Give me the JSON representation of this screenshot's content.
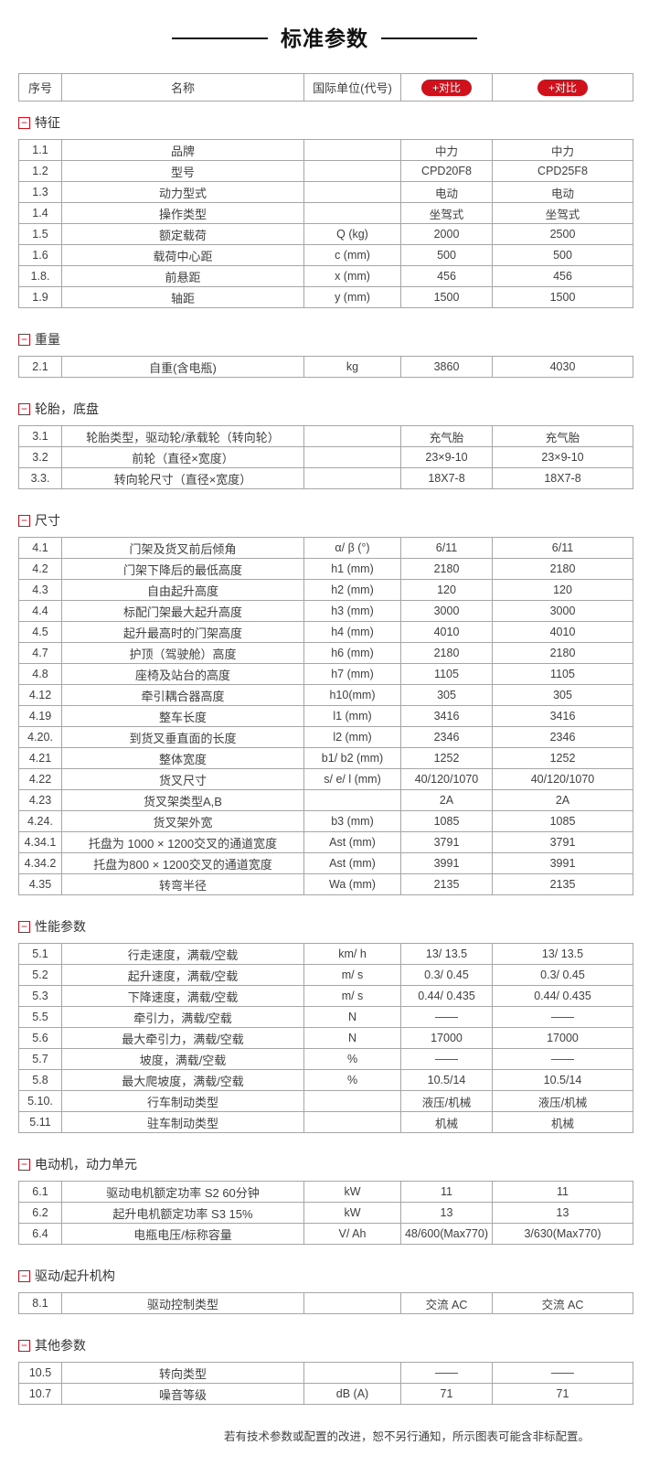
{
  "page_title": "标准参数",
  "colors": {
    "accent_red": "#d0111b",
    "border_gray": "#a6a6a6",
    "text_dark": "#3f3f3f"
  },
  "table_header": {
    "no": "序号",
    "name": "名称",
    "unit": "国际单位(代号)",
    "compare_left": "+对比",
    "compare_right": "+对比"
  },
  "icons": {
    "section_collapse": "−"
  },
  "sections": [
    {
      "title": "特征",
      "rows": [
        [
          "1.1",
          "品牌",
          "",
          "中力",
          "中力"
        ],
        [
          "1.2",
          "型号",
          "",
          "CPD20F8",
          "CPD25F8"
        ],
        [
          "1.3",
          "动力型式",
          "",
          "电动",
          "电动"
        ],
        [
          "1.4",
          "操作类型",
          "",
          "坐驾式",
          "坐驾式"
        ],
        [
          "1.5",
          "额定载荷",
          "Q (kg)",
          "2000",
          "2500"
        ],
        [
          "1.6",
          "载荷中心距",
          "c (mm)",
          "500",
          "500"
        ],
        [
          "1.8.",
          "前悬距",
          "x (mm)",
          "456",
          "456"
        ],
        [
          "1.9",
          "轴距",
          "y (mm)",
          "1500",
          "1500"
        ]
      ]
    },
    {
      "title": "重量",
      "rows": [
        [
          "2.1",
          "自重(含电瓶)",
          "kg",
          "3860",
          "4030"
        ]
      ]
    },
    {
      "title": "轮胎，底盘",
      "rows": [
        [
          "3.1",
          "轮胎类型，驱动轮/承载轮（转向轮）",
          "",
          "充气胎",
          "充气胎"
        ],
        [
          "3.2",
          "前轮（直径×宽度）",
          "",
          "23×9-10",
          "23×9-10"
        ],
        [
          "3.3.",
          "转向轮尺寸（直径×宽度）",
          "",
          "18X7-8",
          "18X7-8"
        ]
      ]
    },
    {
      "title": "尺寸",
      "rows": [
        [
          "4.1",
          "门架及货叉前后倾角",
          "α/ β (°)",
          "6/11",
          "6/11"
        ],
        [
          "4.2",
          "门架下降后的最低高度",
          "h1 (mm)",
          "2180",
          "2180"
        ],
        [
          "4.3",
          "自由起升高度",
          "h2 (mm)",
          "120",
          "120"
        ],
        [
          "4.4",
          "标配门架最大起升高度",
          "h3 (mm)",
          "3000",
          "3000"
        ],
        [
          "4.5",
          "起升最高时的门架高度",
          "h4 (mm)",
          "4010",
          "4010"
        ],
        [
          "4.7",
          "护顶（驾驶舱）高度",
          "h6 (mm)",
          "2180",
          "2180"
        ],
        [
          "4.8",
          "座椅及站台的高度",
          "h7 (mm)",
          "1105",
          "1105"
        ],
        [
          "4.12",
          "牵引耦合器高度",
          "h10(mm)",
          "305",
          "305"
        ],
        [
          "4.19",
          "整车长度",
          "l1 (mm)",
          "3416",
          "3416"
        ],
        [
          "4.20.",
          "到货叉垂直面的长度",
          "l2 (mm)",
          "2346",
          "2346"
        ],
        [
          "4.21",
          "整体宽度",
          "b1/ b2 (mm)",
          "1252",
          "1252"
        ],
        [
          "4.22",
          "货叉尺寸",
          "s/ e/ l (mm)",
          "40/120/1070",
          "40/120/1070"
        ],
        [
          "4.23",
          "货叉架类型A,B",
          "",
          "2A",
          "2A"
        ],
        [
          "4.24.",
          "货叉架外宽",
          "b3 (mm)",
          "1085",
          "1085"
        ],
        [
          "4.34.1",
          "托盘为 1000 × 1200交叉的通道宽度",
          "Ast (mm)",
          "3791",
          "3791"
        ],
        [
          "4.34.2",
          "托盘为800 × 1200交叉的通道宽度",
          "Ast (mm)",
          "3991",
          "3991"
        ],
        [
          "4.35",
          "转弯半径",
          "Wa (mm)",
          "2135",
          "2135"
        ]
      ]
    },
    {
      "title": "性能参数",
      "rows": [
        [
          "5.1",
          "行走速度，满载/空载",
          "km/ h",
          "13/ 13.5",
          "13/ 13.5"
        ],
        [
          "5.2",
          "起升速度，满载/空载",
          "m/ s",
          "0.3/ 0.45",
          "0.3/ 0.45"
        ],
        [
          "5.3",
          "下降速度，满载/空载",
          "m/ s",
          "0.44/ 0.435",
          "0.44/ 0.435"
        ],
        [
          "5.5",
          "牵引力，满载/空载",
          "N",
          "——",
          "——"
        ],
        [
          "5.6",
          "最大牵引力，满载/空载",
          "N",
          "17000",
          "17000"
        ],
        [
          "5.7",
          "坡度，满载/空载",
          "%",
          "——",
          "——"
        ],
        [
          "5.8",
          "最大爬坡度，满载/空载",
          "%",
          "10.5/14",
          "10.5/14"
        ],
        [
          "5.10.",
          "行车制动类型",
          "",
          "液压/机械",
          "液压/机械"
        ],
        [
          "5.11",
          "驻车制动类型",
          "",
          "机械",
          "机械"
        ]
      ]
    },
    {
      "title": "电动机，动力单元",
      "rows": [
        [
          "6.1",
          "驱动电机额定功率 S2 60分钟",
          "kW",
          "11",
          "11"
        ],
        [
          "6.2",
          "起升电机额定功率 S3 15%",
          "kW",
          "13",
          "13"
        ],
        [
          "6.4",
          "电瓶电压/标称容量",
          "V/ Ah",
          "48/600(Max770)",
          "3/630(Max770)"
        ]
      ]
    },
    {
      "title": "驱动/起升机构",
      "rows": [
        [
          "8.1",
          "驱动控制类型",
          "",
          "交流 AC",
          "交流 AC"
        ]
      ]
    },
    {
      "title": "其他参数",
      "rows": [
        [
          "10.5",
          "转向类型",
          "",
          "——",
          "——"
        ],
        [
          "10.7",
          "噪音等级",
          "dB (A)",
          "71",
          "71"
        ]
      ]
    }
  ],
  "footer_note": "若有技术参数或配置的改进，恕不另行通知，所示图表可能含非标配置。"
}
